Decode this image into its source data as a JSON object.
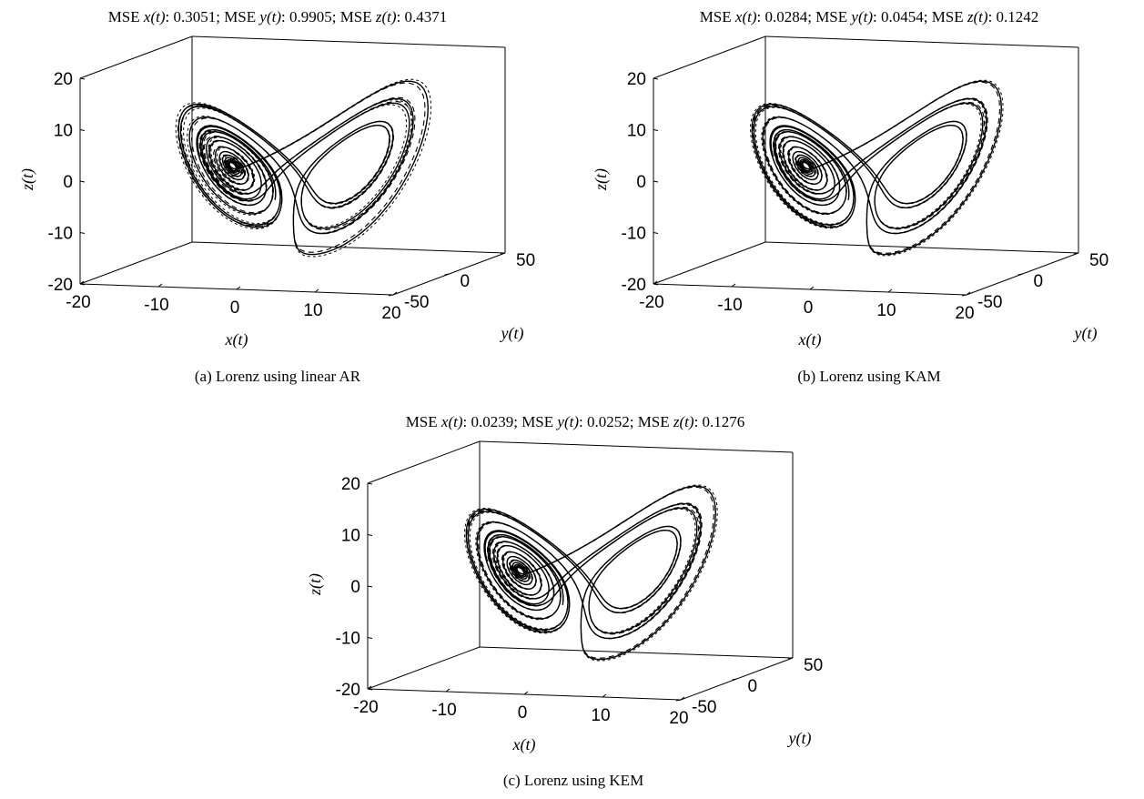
{
  "figure": {
    "captions": [
      "(a) Lorenz using linear AR",
      "(b) Lorenz using KAM",
      "(c) Lorenz using KEM"
    ]
  },
  "chart_data": [
    {
      "type": "line",
      "subplot": "a",
      "title": "MSE x(t): 0.3051; MSE y(t): 0.9905; MSE z(t): 0.4371",
      "title_parts": {
        "mse_label": "MSE",
        "x_var": "x(t)",
        "y_var": "y(t)",
        "z_var": "z(t)",
        "mse_x": "0.3051",
        "mse_y": "0.9905",
        "mse_z": "0.4371"
      },
      "axes": {
        "xlabel": "x(t)",
        "ylabel": "y(t)",
        "zlabel": "z(t)",
        "xlim": [
          -20,
          20
        ],
        "ylim": [
          -50,
          50
        ],
        "zlim": [
          -20,
          20
        ],
        "xticks": [
          "-20",
          "-10",
          "0",
          "10",
          "20"
        ],
        "yticks": [
          "-50",
          "0",
          "50"
        ],
        "zticks": [
          "-20",
          "-10",
          "0",
          "10",
          "20"
        ],
        "box": true,
        "grid": false
      },
      "series": [
        {
          "style": "solid",
          "color": "#000000"
        },
        {
          "style": "dashed",
          "color": "#000000"
        }
      ],
      "attractor": {
        "wings": {
          "left_center": [
            -8.5,
            -8.5,
            27
          ],
          "right_center": [
            8.5,
            8.5,
            27
          ]
        },
        "z_shift": -27
      },
      "perturbation": 0.55
    },
    {
      "type": "line",
      "subplot": "b",
      "title": "MSE x(t): 0.0284; MSE y(t): 0.0454; MSE z(t): 0.1242",
      "title_parts": {
        "mse_label": "MSE",
        "x_var": "x(t)",
        "y_var": "y(t)",
        "z_var": "z(t)",
        "mse_x": "0.0284",
        "mse_y": "0.0454",
        "mse_z": "0.1242"
      },
      "axes": {
        "xlabel": "x(t)",
        "ylabel": "y(t)",
        "zlabel": "z(t)",
        "xlim": [
          -20,
          20
        ],
        "ylim": [
          -50,
          50
        ],
        "zlim": [
          -20,
          20
        ],
        "xticks": [
          "-20",
          "-10",
          "0",
          "10",
          "20"
        ],
        "yticks": [
          "-50",
          "0",
          "50"
        ],
        "zticks": [
          "-20",
          "-10",
          "0",
          "10",
          "20"
        ],
        "box": true,
        "grid": false
      },
      "series": [
        {
          "style": "solid",
          "color": "#000000"
        },
        {
          "style": "dashed",
          "color": "#000000"
        }
      ],
      "attractor": {
        "wings": {
          "left_center": [
            -8.5,
            -8.5,
            27
          ],
          "right_center": [
            8.5,
            8.5,
            27
          ]
        },
        "z_shift": -27
      },
      "perturbation": 0.3
    },
    {
      "type": "line",
      "subplot": "c",
      "title": "MSE x(t): 0.0239; MSE y(t): 0.0252; MSE z(t): 0.1276",
      "title_parts": {
        "mse_label": "MSE",
        "x_var": "x(t)",
        "y_var": "y(t)",
        "z_var": "z(t)",
        "mse_x": "0.0239",
        "mse_y": "0.0252",
        "mse_z": "0.1276"
      },
      "axes": {
        "xlabel": "x(t)",
        "ylabel": "y(t)",
        "zlabel": "z(t)",
        "xlim": [
          -20,
          20
        ],
        "ylim": [
          -50,
          50
        ],
        "zlim": [
          -20,
          20
        ],
        "xticks": [
          "-20",
          "-10",
          "0",
          "10",
          "20"
        ],
        "yticks": [
          "-50",
          "0",
          "50"
        ],
        "zticks": [
          "-20",
          "-10",
          "0",
          "10",
          "20"
        ],
        "box": true,
        "grid": false
      },
      "series": [
        {
          "style": "solid",
          "color": "#000000"
        },
        {
          "style": "dashed",
          "color": "#000000"
        }
      ],
      "attractor": {
        "wings": {
          "left_center": [
            -8.5,
            -8.5,
            27
          ],
          "right_center": [
            8.5,
            8.5,
            27
          ]
        },
        "z_shift": -27
      },
      "perturbation": 0.32
    }
  ]
}
